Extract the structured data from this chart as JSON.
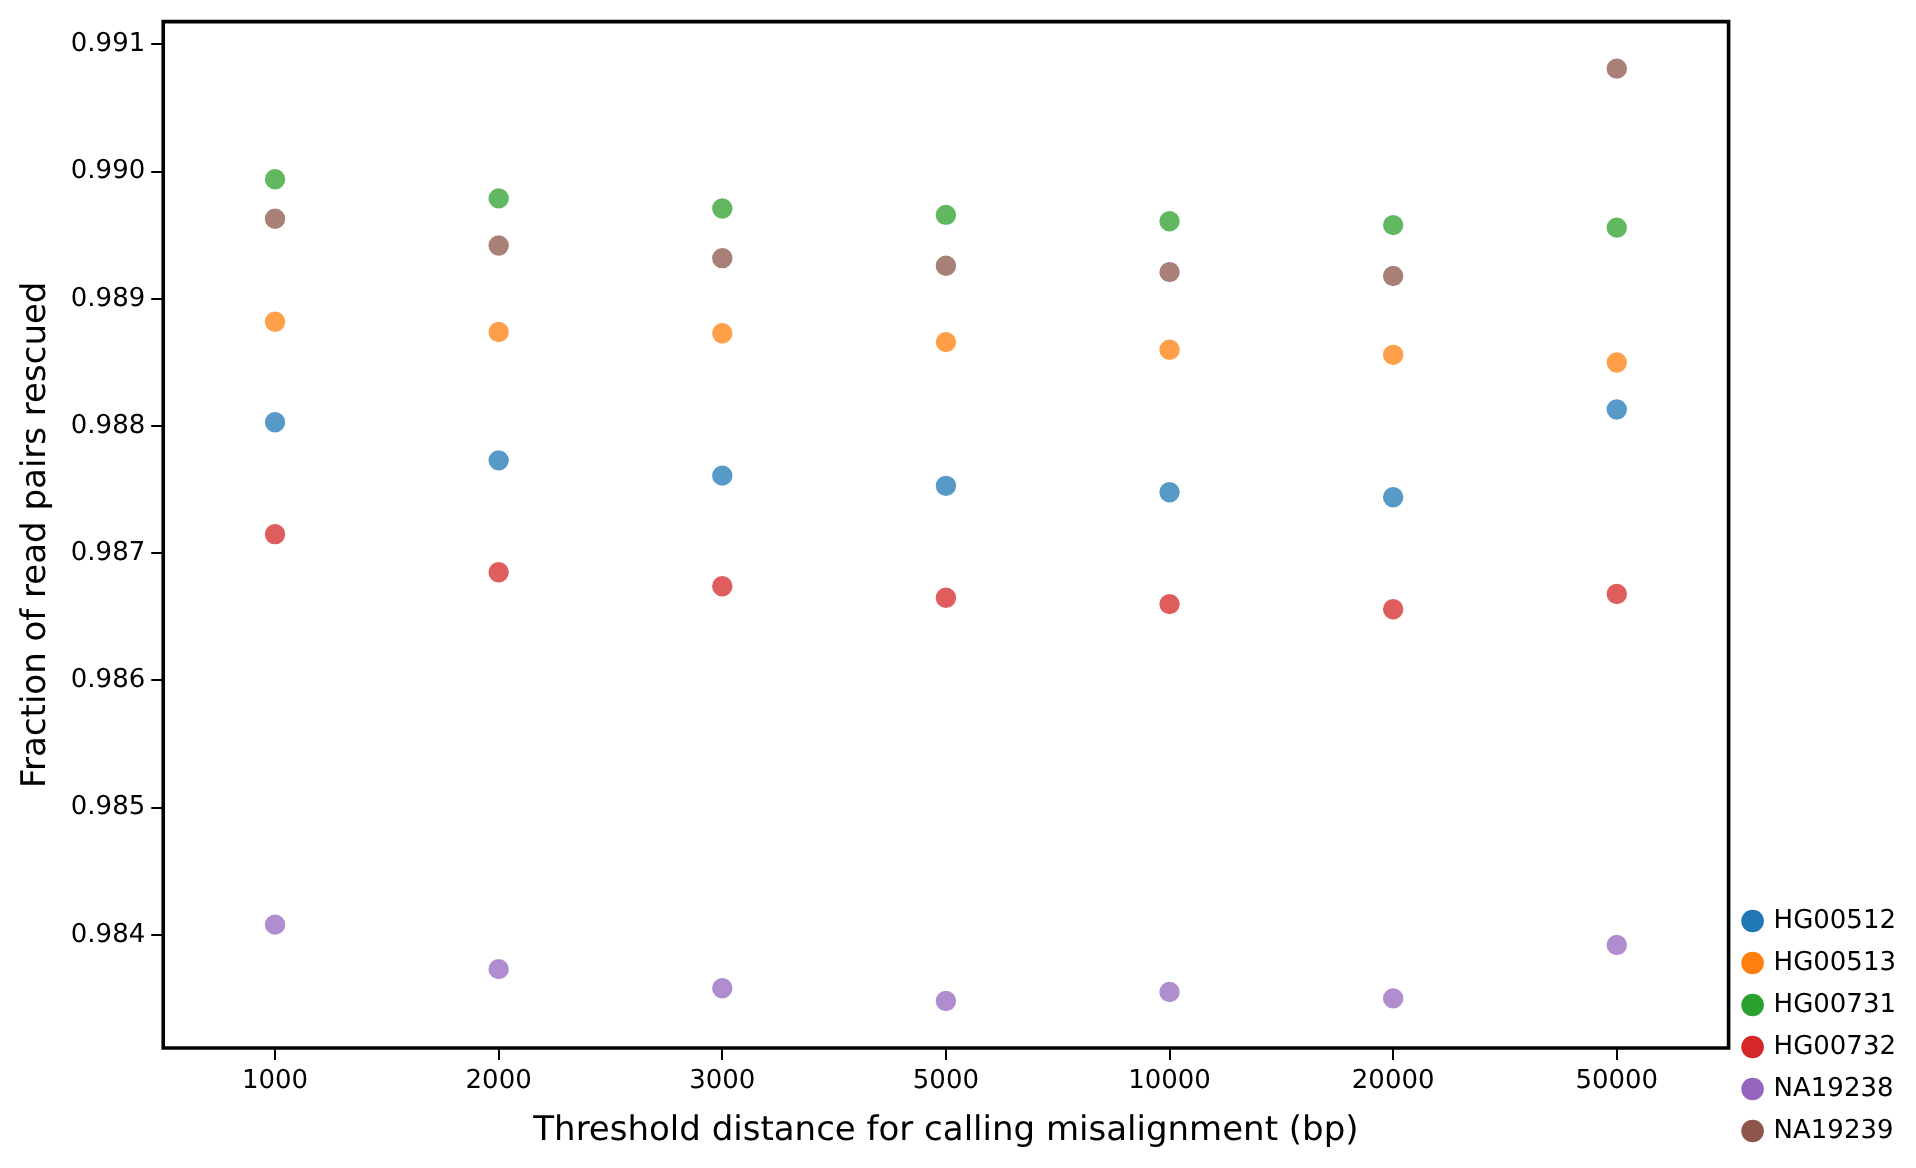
{
  "chart_data": {
    "type": "scatter",
    "xlabel": "Threshold distance for calling misalignment (bp)",
    "ylabel": "Fraction of read pairs rescued",
    "categories": [
      "1000",
      "2000",
      "3000",
      "5000",
      "10000",
      "20000",
      "50000"
    ],
    "series": [
      {
        "name": "HG00512",
        "color": "#1f77b4",
        "values": [
          0.98803,
          0.98773,
          0.98761,
          0.98753,
          0.98748,
          0.98744,
          0.98813
        ]
      },
      {
        "name": "HG00513",
        "color": "#ff7f0e",
        "values": [
          0.98882,
          0.98874,
          0.98873,
          0.98866,
          0.9886,
          0.98856,
          0.9885
        ]
      },
      {
        "name": "HG00731",
        "color": "#2ca02c",
        "values": [
          0.98994,
          0.98979,
          0.98971,
          0.98966,
          0.98961,
          0.98958,
          0.98956
        ]
      },
      {
        "name": "HG00732",
        "color": "#d62728",
        "values": [
          0.98715,
          0.98685,
          0.98674,
          0.98665,
          0.9866,
          0.98656,
          0.98668
        ]
      },
      {
        "name": "NA19238",
        "color": "#9467bd",
        "values": [
          0.98408,
          0.98373,
          0.98358,
          0.98348,
          0.98355,
          0.9835,
          0.98392
        ]
      },
      {
        "name": "NA19239",
        "color": "#8c564b",
        "values": [
          0.98963,
          0.98942,
          0.98932,
          0.98926,
          0.98921,
          0.98918,
          0.99081
        ]
      }
    ],
    "ylim": [
      0.98311,
      0.99118
    ],
    "yticks": [
      0.984,
      0.985,
      0.986,
      0.987,
      0.988,
      0.989,
      {
        "value": 0.99,
        "label": "0.990"
      },
      0.991
    ],
    "grid": false,
    "legend": "bottom right",
    "marker": "circle"
  }
}
